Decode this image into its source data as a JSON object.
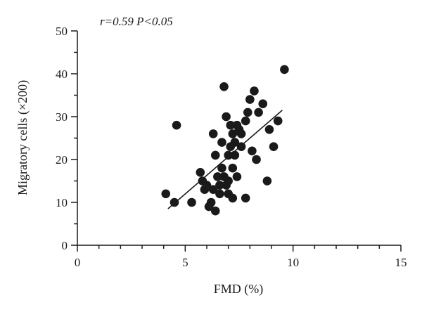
{
  "chart_data": {
    "type": "scatter",
    "title": "",
    "annotation": "r=0.59 P<0.05",
    "xlabel": "FMD (%)",
    "ylabel": "Migratory cells (×200)",
    "xlim": [
      0,
      15
    ],
    "ylim": [
      0,
      50
    ],
    "x_major_ticks": [
      0,
      5,
      10,
      15
    ],
    "x_tick_labels": [
      "0",
      "5",
      "10",
      "15"
    ],
    "x_minor_tick_step": 1,
    "y_major_ticks": [
      0,
      10,
      20,
      30,
      40,
      50
    ],
    "y_tick_labels": [
      "0",
      "10",
      "20",
      "30",
      "40",
      "50"
    ],
    "y_minor_tick_step": 5,
    "grid": false,
    "legend": "none",
    "marker_color": "#1a1a1a",
    "points": [
      {
        "x": 4.1,
        "y": 12
      },
      {
        "x": 4.5,
        "y": 10
      },
      {
        "x": 4.6,
        "y": 28
      },
      {
        "x": 5.3,
        "y": 10
      },
      {
        "x": 5.7,
        "y": 17
      },
      {
        "x": 5.8,
        "y": 15
      },
      {
        "x": 5.9,
        "y": 13
      },
      {
        "x": 6.0,
        "y": 14
      },
      {
        "x": 6.1,
        "y": 9
      },
      {
        "x": 6.2,
        "y": 10
      },
      {
        "x": 6.3,
        "y": 26
      },
      {
        "x": 6.3,
        "y": 13
      },
      {
        "x": 6.4,
        "y": 21
      },
      {
        "x": 6.4,
        "y": 8
      },
      {
        "x": 6.5,
        "y": 16
      },
      {
        "x": 6.6,
        "y": 12
      },
      {
        "x": 6.6,
        "y": 14
      },
      {
        "x": 6.7,
        "y": 18
      },
      {
        "x": 6.7,
        "y": 24
      },
      {
        "x": 6.8,
        "y": 37
      },
      {
        "x": 6.8,
        "y": 16
      },
      {
        "x": 6.9,
        "y": 30
      },
      {
        "x": 6.9,
        "y": 14
      },
      {
        "x": 7.0,
        "y": 21
      },
      {
        "x": 7.0,
        "y": 15
      },
      {
        "x": 7.0,
        "y": 12
      },
      {
        "x": 7.1,
        "y": 28
      },
      {
        "x": 7.1,
        "y": 23
      },
      {
        "x": 7.2,
        "y": 26
      },
      {
        "x": 7.2,
        "y": 11
      },
      {
        "x": 7.2,
        "y": 18
      },
      {
        "x": 7.3,
        "y": 21
      },
      {
        "x": 7.3,
        "y": 24
      },
      {
        "x": 7.4,
        "y": 28
      },
      {
        "x": 7.4,
        "y": 16
      },
      {
        "x": 7.5,
        "y": 27
      },
      {
        "x": 7.6,
        "y": 26
      },
      {
        "x": 7.6,
        "y": 23
      },
      {
        "x": 7.8,
        "y": 29
      },
      {
        "x": 7.8,
        "y": 11
      },
      {
        "x": 7.9,
        "y": 31
      },
      {
        "x": 8.0,
        "y": 34
      },
      {
        "x": 8.1,
        "y": 22
      },
      {
        "x": 8.2,
        "y": 36
      },
      {
        "x": 8.3,
        "y": 20
      },
      {
        "x": 8.4,
        "y": 31
      },
      {
        "x": 8.6,
        "y": 33
      },
      {
        "x": 8.8,
        "y": 15
      },
      {
        "x": 8.9,
        "y": 27
      },
      {
        "x": 9.1,
        "y": 23
      },
      {
        "x": 9.3,
        "y": 29
      },
      {
        "x": 9.6,
        "y": 41
      }
    ],
    "trend_line": {
      "x": [
        4.2,
        9.5
      ],
      "y": [
        8.5,
        31.5
      ]
    }
  }
}
